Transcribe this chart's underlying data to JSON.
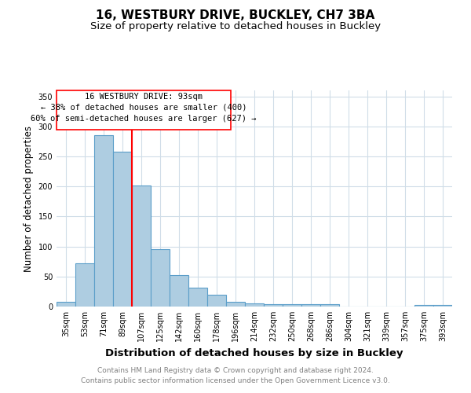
{
  "title1": "16, WESTBURY DRIVE, BUCKLEY, CH7 3BA",
  "title2": "Size of property relative to detached houses in Buckley",
  "xlabel": "Distribution of detached houses by size in Buckley",
  "ylabel": "Number of detached properties",
  "footnote1": "Contains HM Land Registry data © Crown copyright and database right 2024.",
  "footnote2": "Contains public sector information licensed under the Open Government Licence v3.0.",
  "annotation_line1": "16 WESTBURY DRIVE: 93sqm",
  "annotation_line2": "← 38% of detached houses are smaller (400)",
  "annotation_line3": "60% of semi-detached houses are larger (627) →",
  "bar_labels": [
    "35sqm",
    "53sqm",
    "71sqm",
    "89sqm",
    "107sqm",
    "125sqm",
    "142sqm",
    "160sqm",
    "178sqm",
    "196sqm",
    "214sqm",
    "232sqm",
    "250sqm",
    "268sqm",
    "286sqm",
    "304sqm",
    "321sqm",
    "339sqm",
    "357sqm",
    "375sqm",
    "393sqm"
  ],
  "bar_values": [
    8,
    72,
    285,
    258,
    202,
    95,
    52,
    31,
    19,
    8,
    5,
    4,
    4,
    4,
    4,
    0,
    0,
    0,
    0,
    3,
    3
  ],
  "bar_color": "#aecde1",
  "bar_edge_color": "#5b9ec9",
  "red_line_x": 3.5,
  "ylim": [
    0,
    360
  ],
  "yticks": [
    0,
    50,
    100,
    150,
    200,
    250,
    300,
    350
  ],
  "background_color": "#ffffff",
  "grid_color": "#d0dde8",
  "title1_fontsize": 11,
  "title2_fontsize": 9.5,
  "xlabel_fontsize": 9.5,
  "ylabel_fontsize": 8.5,
  "tick_fontsize": 7,
  "footnote_fontsize": 6.5,
  "annotation_fontsize": 7.5
}
